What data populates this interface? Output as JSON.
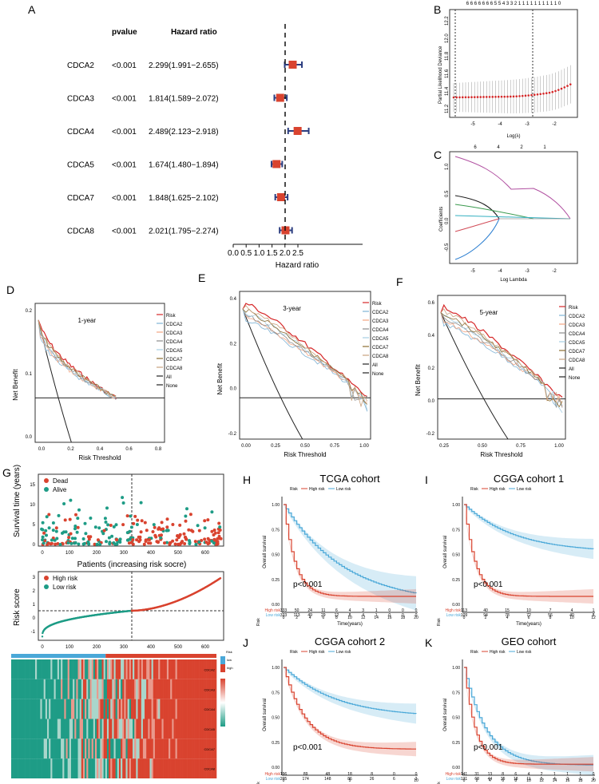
{
  "panels": {
    "A": "A",
    "B": "B",
    "C": "C",
    "D": "D",
    "E": "E",
    "F": "F",
    "G": "G",
    "H": "H",
    "I": "I",
    "J": "J",
    "K": "K"
  },
  "forest": {
    "col_pvalue": "pvalue",
    "col_hr": "Hazard ratio",
    "xlabel": "Hazard ratio",
    "rows": [
      {
        "gene": "CDCA2",
        "p": "<0.001",
        "hr_text": "2.299(1.991−2.655)",
        "hr": 2.299,
        "lo": 1.991,
        "hi": 2.655
      },
      {
        "gene": "CDCA3",
        "p": "<0.001",
        "hr_text": "1.814(1.589−2.072)",
        "hr": 1.814,
        "lo": 1.589,
        "hi": 2.072
      },
      {
        "gene": "CDCA4",
        "p": "<0.001",
        "hr_text": "2.489(2.123−2.918)",
        "hr": 2.489,
        "lo": 2.123,
        "hi": 2.918
      },
      {
        "gene": "CDCA5",
        "p": "<0.001",
        "hr_text": "1.674(1.480−1.894)",
        "hr": 1.674,
        "lo": 1.48,
        "hi": 1.894
      },
      {
        "gene": "CDCA7",
        "p": "<0.001",
        "hr_text": "1.848(1.625−2.102)",
        "hr": 1.848,
        "lo": 1.625,
        "hi": 2.102
      },
      {
        "gene": "CDCA8",
        "p": "<0.001",
        "hr_text": "2.021(1.795−2.274)",
        "hr": 2.021,
        "lo": 1.795,
        "hi": 2.274
      }
    ],
    "ticks": [
      "0.0",
      "0.5",
      "1.0",
      "1.5",
      "2.0",
      "2.5"
    ]
  },
  "lasso_cv": {
    "ylabel": "Partial Likelihood Deviance",
    "xlabel": "Log(λ)",
    "xticks": [
      "-5",
      "-4",
      "-3",
      "-2"
    ],
    "yticks": [
      "11.2",
      "11.4",
      "11.6",
      "11.8",
      "12.0",
      "12.2"
    ],
    "top": "6 6 6 6 6 6 6 5 5 4 3 3 2 1 1 1 1 1 1 1 1 1 1 0"
  },
  "lasso_coef": {
    "ylabel": "Coefficients",
    "xlabel": "Log Lambda",
    "xticks": [
      "-5",
      "-4",
      "-3",
      "-2"
    ],
    "yticks": [
      "1.0",
      "0.5",
      "0.0",
      "-0.5"
    ],
    "top": [
      "6",
      "4",
      "2",
      "1"
    ]
  },
  "dca": [
    {
      "title": "1-year",
      "ylabel": "Net Benefit",
      "xlabel": "Risk Threshold",
      "xticks": [
        "0.0",
        "0.2",
        "0.4",
        "0.6",
        "0.8"
      ],
      "yticks": [
        "0.2",
        "0.1",
        "0.0"
      ]
    },
    {
      "title": "3-year",
      "ylabel": "Net Benefit",
      "xlabel": "Risk Threshold",
      "xticks": [
        "0.00",
        "0.25",
        "0.50",
        "0.75",
        "1.00"
      ],
      "yticks": [
        "0.4",
        "0.2",
        "0.0",
        "-0.2"
      ]
    },
    {
      "title": "5-year",
      "ylabel": "Net Benefit",
      "xlabel": "Risk Threshold",
      "xticks": [
        "0.25",
        "0.50",
        "0.75",
        "1.00"
      ],
      "yticks": [
        "0.6",
        "0.4",
        "0.2",
        "0.0",
        "-0.2"
      ]
    }
  ],
  "dca_legend": [
    "Risk",
    "CDCA2",
    "CDCA3",
    "CDCA4",
    "CDCA5",
    "CDCA7",
    "CDCA8",
    "All",
    "None"
  ],
  "dca_colors": [
    "#d62728",
    "#7fb3d5",
    "#f4a582",
    "#8c8c8c",
    "#a6cee3",
    "#8c6d31",
    "#c9a27e",
    "#222222",
    "#222222"
  ],
  "risk_plot": {
    "surv_ylabel": "Survival time (years)",
    "surv_xlabel": "Patients (increasing risk socre)",
    "dead": "Dead",
    "alive": "Alive",
    "surv_yticks": [
      "15",
      "10",
      "5",
      "0"
    ],
    "xticks": [
      "0",
      "100",
      "200",
      "300",
      "400",
      "500",
      "600"
    ],
    "score_ylabel": "Risk score",
    "high": "High risk",
    "low": "Low risk",
    "score_yticks": [
      "3",
      "2",
      "1",
      "0",
      "-1"
    ],
    "heat_genes": [
      "CDCA2",
      "CDCA3",
      "CDCA4",
      "CDCA5",
      "CDCA7",
      "CDCA8"
    ],
    "heat_legend_title": "Risk",
    "heat_legend_items": [
      "low",
      "high"
    ]
  },
  "km": [
    {
      "title": "TCGA cohort",
      "p": "p<0.001",
      "xmax": 20,
      "xticks": [
        "0",
        "2",
        "4",
        "6",
        "8",
        "10",
        "12",
        "14",
        "16",
        "18",
        "20"
      ],
      "high": [
        "333",
        "50",
        "24",
        "11",
        "6",
        "4",
        "3",
        "1",
        "0",
        "0",
        "0"
      ],
      "low": [
        "333",
        "113",
        "49",
        "29",
        "12",
        "8",
        "4",
        "1",
        "0",
        "0",
        "0"
      ]
    },
    {
      "title": "CGGA cohort 1",
      "p": "p<0.001",
      "xmax": 12,
      "xticks": [
        "0",
        "2",
        "4",
        "6",
        "8",
        "10",
        "12"
      ],
      "high": [
        "113",
        "40",
        "15",
        "10",
        "7",
        "4",
        "1"
      ],
      "low": [
        "109",
        "94",
        "78",
        "72",
        "56",
        "40",
        "8"
      ]
    },
    {
      "title": "CGGA cohort 2",
      "p": "p<0.001",
      "xmax": 12,
      "xticks": [
        "0",
        "5",
        "10"
      ],
      "high": [
        "196",
        "89",
        "48",
        "18",
        "8",
        "0",
        "0"
      ],
      "low": [
        "205",
        "174",
        "148",
        "86",
        "26",
        "6",
        "2"
      ]
    },
    {
      "title": "GEO cohort",
      "p": "p<0.001",
      "xmax": 20,
      "xticks": [
        "0",
        "2",
        "4",
        "6",
        "8",
        "10",
        "12",
        "14",
        "16",
        "18",
        "20"
      ],
      "high": [
        "141",
        "31",
        "13",
        "8",
        "6",
        "4",
        "2",
        "1",
        "1",
        "1",
        "0"
      ],
      "low": [
        "131",
        "68",
        "44",
        "35",
        "18",
        "11",
        "5",
        "4",
        "3",
        "1",
        "1"
      ]
    }
  ],
  "km_common": {
    "risk": "Risk",
    "high": "High risk",
    "low": "Low risk",
    "ylabel": "Overall survival",
    "xlabel": "Time(years)",
    "yticks": [
      "1.00",
      "0.75",
      "0.50",
      "0.25",
      "0.00"
    ],
    "row_high": "High risk",
    "row_low": "Low risk",
    "row_title": "Risk"
  },
  "colors": {
    "red": "#d9432f",
    "blue": "#4aa8d8",
    "teal": "#1e9c86",
    "navy": "#2c3e80"
  }
}
